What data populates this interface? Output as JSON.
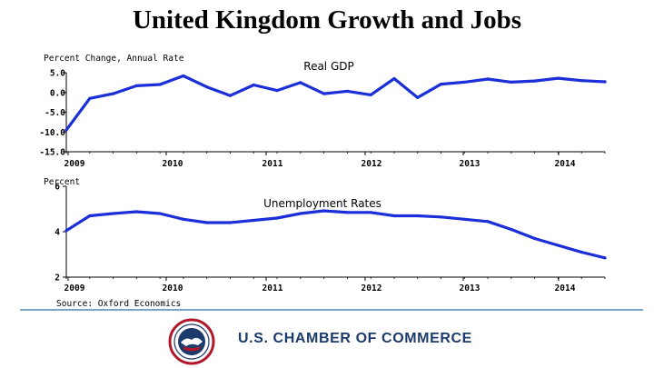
{
  "slide": {
    "title": "United Kingdom Growth and Jobs",
    "source": "Source: Oxford Economics",
    "organization": "U.S. CHAMBER OF COMMERCE",
    "seal_text": "U.S. CHAMBER OF COMMERCE",
    "rule_color": "#7fa6c9"
  },
  "chart_data": [
    {
      "type": "line",
      "title": "Real GDP",
      "ylabel": "Percent Change, Annual Rate",
      "xlabel": "",
      "x_tick_labels": [
        "2009",
        "2010",
        "2011",
        "2012",
        "2013",
        "2014"
      ],
      "y_tick_labels": [
        "5.0",
        "0.0",
        "-5.0",
        "-10.0",
        "-15.0"
      ],
      "y_ticks": [
        5,
        0,
        -5,
        -10,
        -15
      ],
      "ylim": [
        -15,
        5
      ],
      "xlim": [
        2009,
        2014.75
      ],
      "grid": false,
      "color": "#1a2fd8",
      "series": [
        {
          "name": "Real GDP",
          "x": [
            2009,
            2009.25,
            2009.5,
            2009.75,
            2010,
            2010.25,
            2010.5,
            2010.75,
            2011,
            2011.25,
            2011.5,
            2011.75,
            2012,
            2012.25,
            2012.5,
            2012.75,
            2013,
            2013.25,
            2013.5,
            2013.75,
            2014,
            2014.25,
            2014.5,
            2014.75
          ],
          "values": [
            -9.5,
            -1.5,
            -0.3,
            1.7,
            2.0,
            4.2,
            1.4,
            -0.8,
            1.9,
            0.5,
            2.5,
            -0.3,
            0.3,
            -0.6,
            3.5,
            -1.3,
            2.1,
            2.6,
            3.4,
            2.6,
            2.9,
            3.6,
            3.0,
            2.7
          ]
        }
      ]
    },
    {
      "type": "line",
      "title": "Unemployment Rates",
      "ylabel": "Percent",
      "xlabel": "",
      "x_tick_labels": [
        "2009",
        "2010",
        "2011",
        "2012",
        "2013",
        "2014"
      ],
      "y_tick_labels": [
        "6",
        "4",
        "2"
      ],
      "y_ticks": [
        6,
        4,
        2
      ],
      "ylim": [
        2,
        6
      ],
      "xlim": [
        2009,
        2014.75
      ],
      "grid": false,
      "color": "#1a2fd8",
      "series": [
        {
          "name": "Unemployment Rates",
          "x": [
            2009,
            2009.25,
            2009.5,
            2009.75,
            2010,
            2010.25,
            2010.5,
            2010.75,
            2011,
            2011.25,
            2011.5,
            2011.75,
            2012,
            2012.25,
            2012.5,
            2012.75,
            2013,
            2013.25,
            2013.5,
            2013.75,
            2014,
            2014.25,
            2014.5,
            2014.75
          ],
          "values": [
            4.05,
            4.7,
            4.8,
            4.88,
            4.8,
            4.55,
            4.4,
            4.4,
            4.5,
            4.6,
            4.8,
            4.92,
            4.85,
            4.85,
            4.7,
            4.7,
            4.65,
            4.55,
            4.45,
            4.1,
            3.7,
            3.4,
            3.1,
            2.85
          ]
        }
      ]
    }
  ]
}
